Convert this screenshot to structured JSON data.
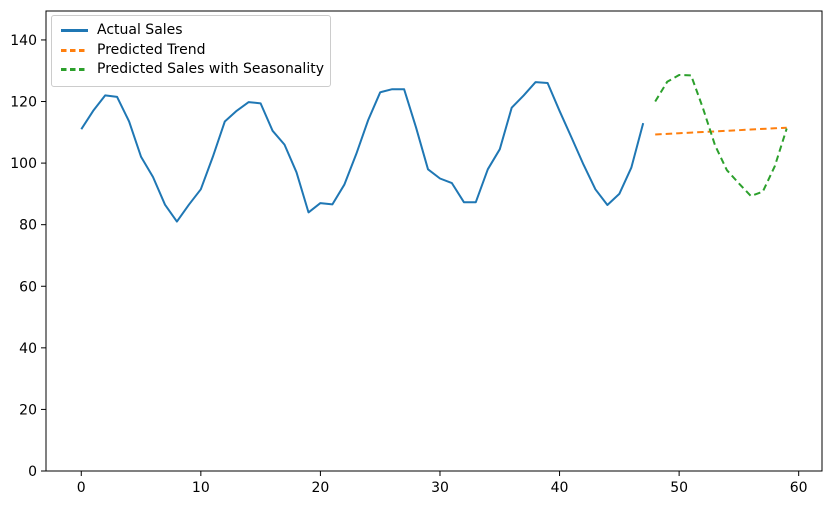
{
  "chart_data": {
    "type": "line",
    "title": "",
    "xlabel": "",
    "ylabel": "",
    "grid": false,
    "legend_position": "upper-left",
    "xlim": [
      -2.95,
      61.95
    ],
    "ylim": [
      0,
      149.4
    ],
    "x_ticks": [
      0,
      10,
      20,
      30,
      40,
      50,
      60
    ],
    "y_ticks": [
      0,
      20,
      40,
      60,
      80,
      100,
      120,
      140
    ],
    "series": [
      {
        "name": "Actual Sales",
        "color": "#1f77b4",
        "linestyle": "solid",
        "x": [
          0,
          1,
          2,
          3,
          4,
          5,
          6,
          7,
          8,
          9,
          10,
          11,
          12,
          13,
          14,
          15,
          16,
          17,
          18,
          19,
          20,
          21,
          22,
          23,
          24,
          25,
          26,
          27,
          28,
          29,
          30,
          31,
          32,
          33,
          34,
          35,
          36,
          37,
          38,
          39,
          40,
          41,
          42,
          43,
          44,
          45,
          46,
          47
        ],
        "values": [
          111,
          117,
          122,
          121.5,
          113.5,
          102,
          95.5,
          86.5,
          81,
          86.5,
          91.5,
          102,
          113.5,
          117,
          119.8,
          119.4,
          110.5,
          106,
          97,
          84,
          87,
          86.6,
          93,
          103,
          114,
          123,
          124,
          124,
          111.5,
          98,
          95,
          93.5,
          87.3,
          87.3,
          98,
          104.5,
          118,
          122,
          126.3,
          126,
          117,
          108.3,
          99.5,
          91.5,
          86.4,
          90,
          98.5,
          113
        ]
      },
      {
        "name": "Predicted Trend",
        "color": "#ff7f0e",
        "linestyle": "dashed",
        "x": [
          48,
          49,
          50,
          51,
          52,
          53,
          54,
          55,
          56,
          57,
          58,
          59
        ],
        "values": [
          109.3,
          109.5,
          109.7,
          109.9,
          110.1,
          110.3,
          110.5,
          110.7,
          110.9,
          111.1,
          111.3,
          111.5
        ]
      },
      {
        "name": "Predicted Sales with Seasonality",
        "color": "#2ca02c",
        "linestyle": "dashed",
        "x": [
          48,
          49,
          50,
          51,
          52,
          53,
          54,
          55,
          56,
          57,
          58,
          59
        ],
        "values": [
          120,
          126.4,
          128.6,
          128.5,
          117.8,
          105.8,
          97.7,
          93.4,
          89.3,
          90.7,
          99,
          111.2
        ]
      }
    ]
  }
}
